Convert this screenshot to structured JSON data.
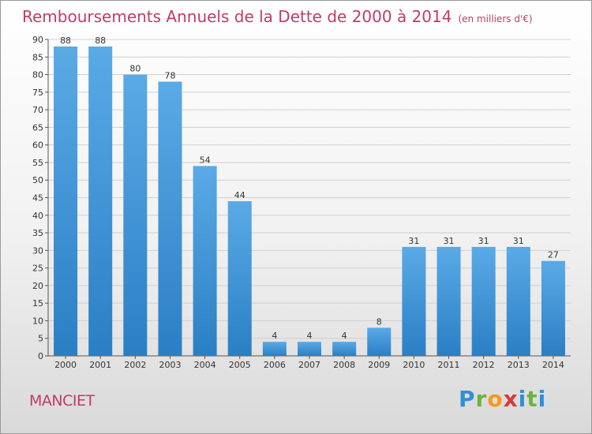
{
  "title": "Remboursements Annuels de la Dette de 2000 à 2014",
  "unit": "(en milliers d'€)",
  "commune": "MANCIET",
  "logo_text": "Proxiti",
  "colors": {
    "title": "#c23a6a",
    "bar_top": "#5aaae6",
    "bar_bottom": "#2a7fc4",
    "grid": "#d0d0d0"
  },
  "chart_data": {
    "type": "bar",
    "title": "Remboursements Annuels de la Dette de 2000 à 2014",
    "subtitle": "(en milliers d'€)",
    "xlabel": "",
    "ylabel": "",
    "categories": [
      "2000",
      "2001",
      "2002",
      "2003",
      "2004",
      "2005",
      "2006",
      "2007",
      "2008",
      "2009",
      "2010",
      "2011",
      "2012",
      "2013",
      "2014"
    ],
    "values": [
      88,
      88,
      80,
      78,
      54,
      44,
      4,
      4,
      4,
      8,
      31,
      31,
      31,
      31,
      27
    ],
    "ylim": [
      0,
      90
    ],
    "yticks": [
      0,
      5,
      10,
      15,
      20,
      25,
      30,
      35,
      40,
      45,
      50,
      55,
      60,
      65,
      70,
      75,
      80,
      85,
      90
    ],
    "grid": true,
    "legend": "none"
  }
}
